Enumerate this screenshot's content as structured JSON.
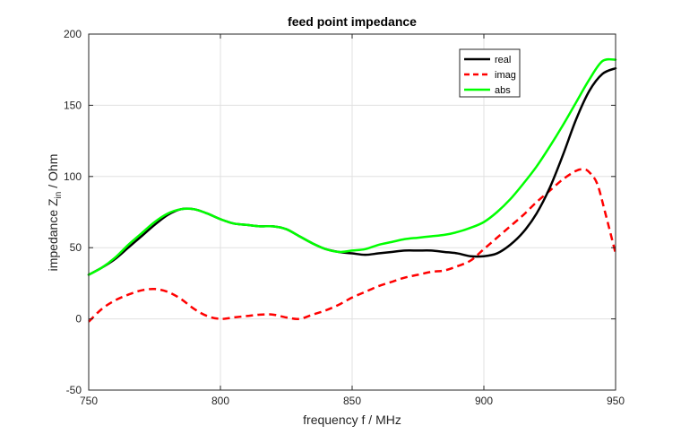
{
  "chart_data": {
    "type": "line",
    "title": "feed point impedance",
    "xlabel": "frequency f / MHz",
    "ylabel": {
      "main": "impedance Z",
      "sub": "in",
      "tail": " / Ohm"
    },
    "xlim": [
      750,
      950
    ],
    "ylim": [
      -50,
      200
    ],
    "xticks": [
      750,
      800,
      850,
      900,
      950
    ],
    "yticks": [
      -50,
      0,
      50,
      100,
      150,
      200
    ],
    "grid": true,
    "legend_position": "top-right",
    "series": [
      {
        "name": "real",
        "color": "#000000",
        "style": "solid",
        "x": [
          750,
          755,
          760,
          765,
          770,
          775,
          780,
          785,
          790,
          795,
          800,
          805,
          810,
          815,
          820,
          825,
          830,
          835,
          840,
          845,
          850,
          855,
          860,
          865,
          870,
          875,
          880,
          885,
          890,
          895,
          900,
          905,
          910,
          915,
          920,
          925,
          930,
          935,
          940,
          945,
          950
        ],
        "y": [
          31,
          36,
          42,
          50,
          58,
          66,
          73,
          77,
          77,
          74,
          70,
          67,
          66,
          65,
          65,
          63,
          58,
          53,
          49,
          47,
          46,
          45,
          46,
          47,
          48,
          48,
          48,
          47,
          46,
          44,
          44,
          46,
          52,
          61,
          74,
          92,
          115,
          140,
          160,
          172,
          176
        ]
      },
      {
        "name": "imag",
        "color": "#ff0000",
        "style": "dashed",
        "x": [
          750,
          755,
          760,
          765,
          770,
          775,
          780,
          785,
          790,
          795,
          800,
          805,
          810,
          815,
          820,
          825,
          830,
          835,
          840,
          845,
          850,
          855,
          860,
          865,
          870,
          875,
          880,
          885,
          890,
          895,
          900,
          905,
          910,
          915,
          920,
          925,
          930,
          935,
          938,
          940,
          943,
          946,
          950
        ],
        "y": [
          -2,
          7,
          13,
          17,
          20,
          21,
          19,
          14,
          7,
          2,
          0,
          1,
          2,
          3,
          3,
          1,
          0,
          3,
          6,
          10,
          15,
          19,
          23,
          26,
          29,
          31,
          33,
          34,
          37,
          41,
          49,
          57,
          65,
          73,
          82,
          90,
          98,
          104,
          105,
          103,
          95,
          75,
          46
        ]
      },
      {
        "name": "abs",
        "color": "#00ff00",
        "style": "solid",
        "x": [
          750,
          755,
          760,
          765,
          770,
          775,
          780,
          785,
          790,
          795,
          800,
          805,
          810,
          815,
          820,
          825,
          830,
          835,
          840,
          845,
          850,
          855,
          860,
          865,
          870,
          875,
          880,
          885,
          890,
          895,
          900,
          905,
          910,
          915,
          920,
          925,
          930,
          935,
          940,
          945,
          950
        ],
        "y": [
          31,
          36,
          43,
          52,
          60,
          68,
          74,
          77,
          77,
          74,
          70,
          67,
          66,
          65,
          65,
          63,
          58,
          53,
          49,
          47,
          48,
          49,
          52,
          54,
          56,
          57,
          58,
          59,
          61,
          64,
          68,
          75,
          84,
          95,
          107,
          121,
          136,
          152,
          168,
          181,
          182
        ]
      }
    ]
  }
}
